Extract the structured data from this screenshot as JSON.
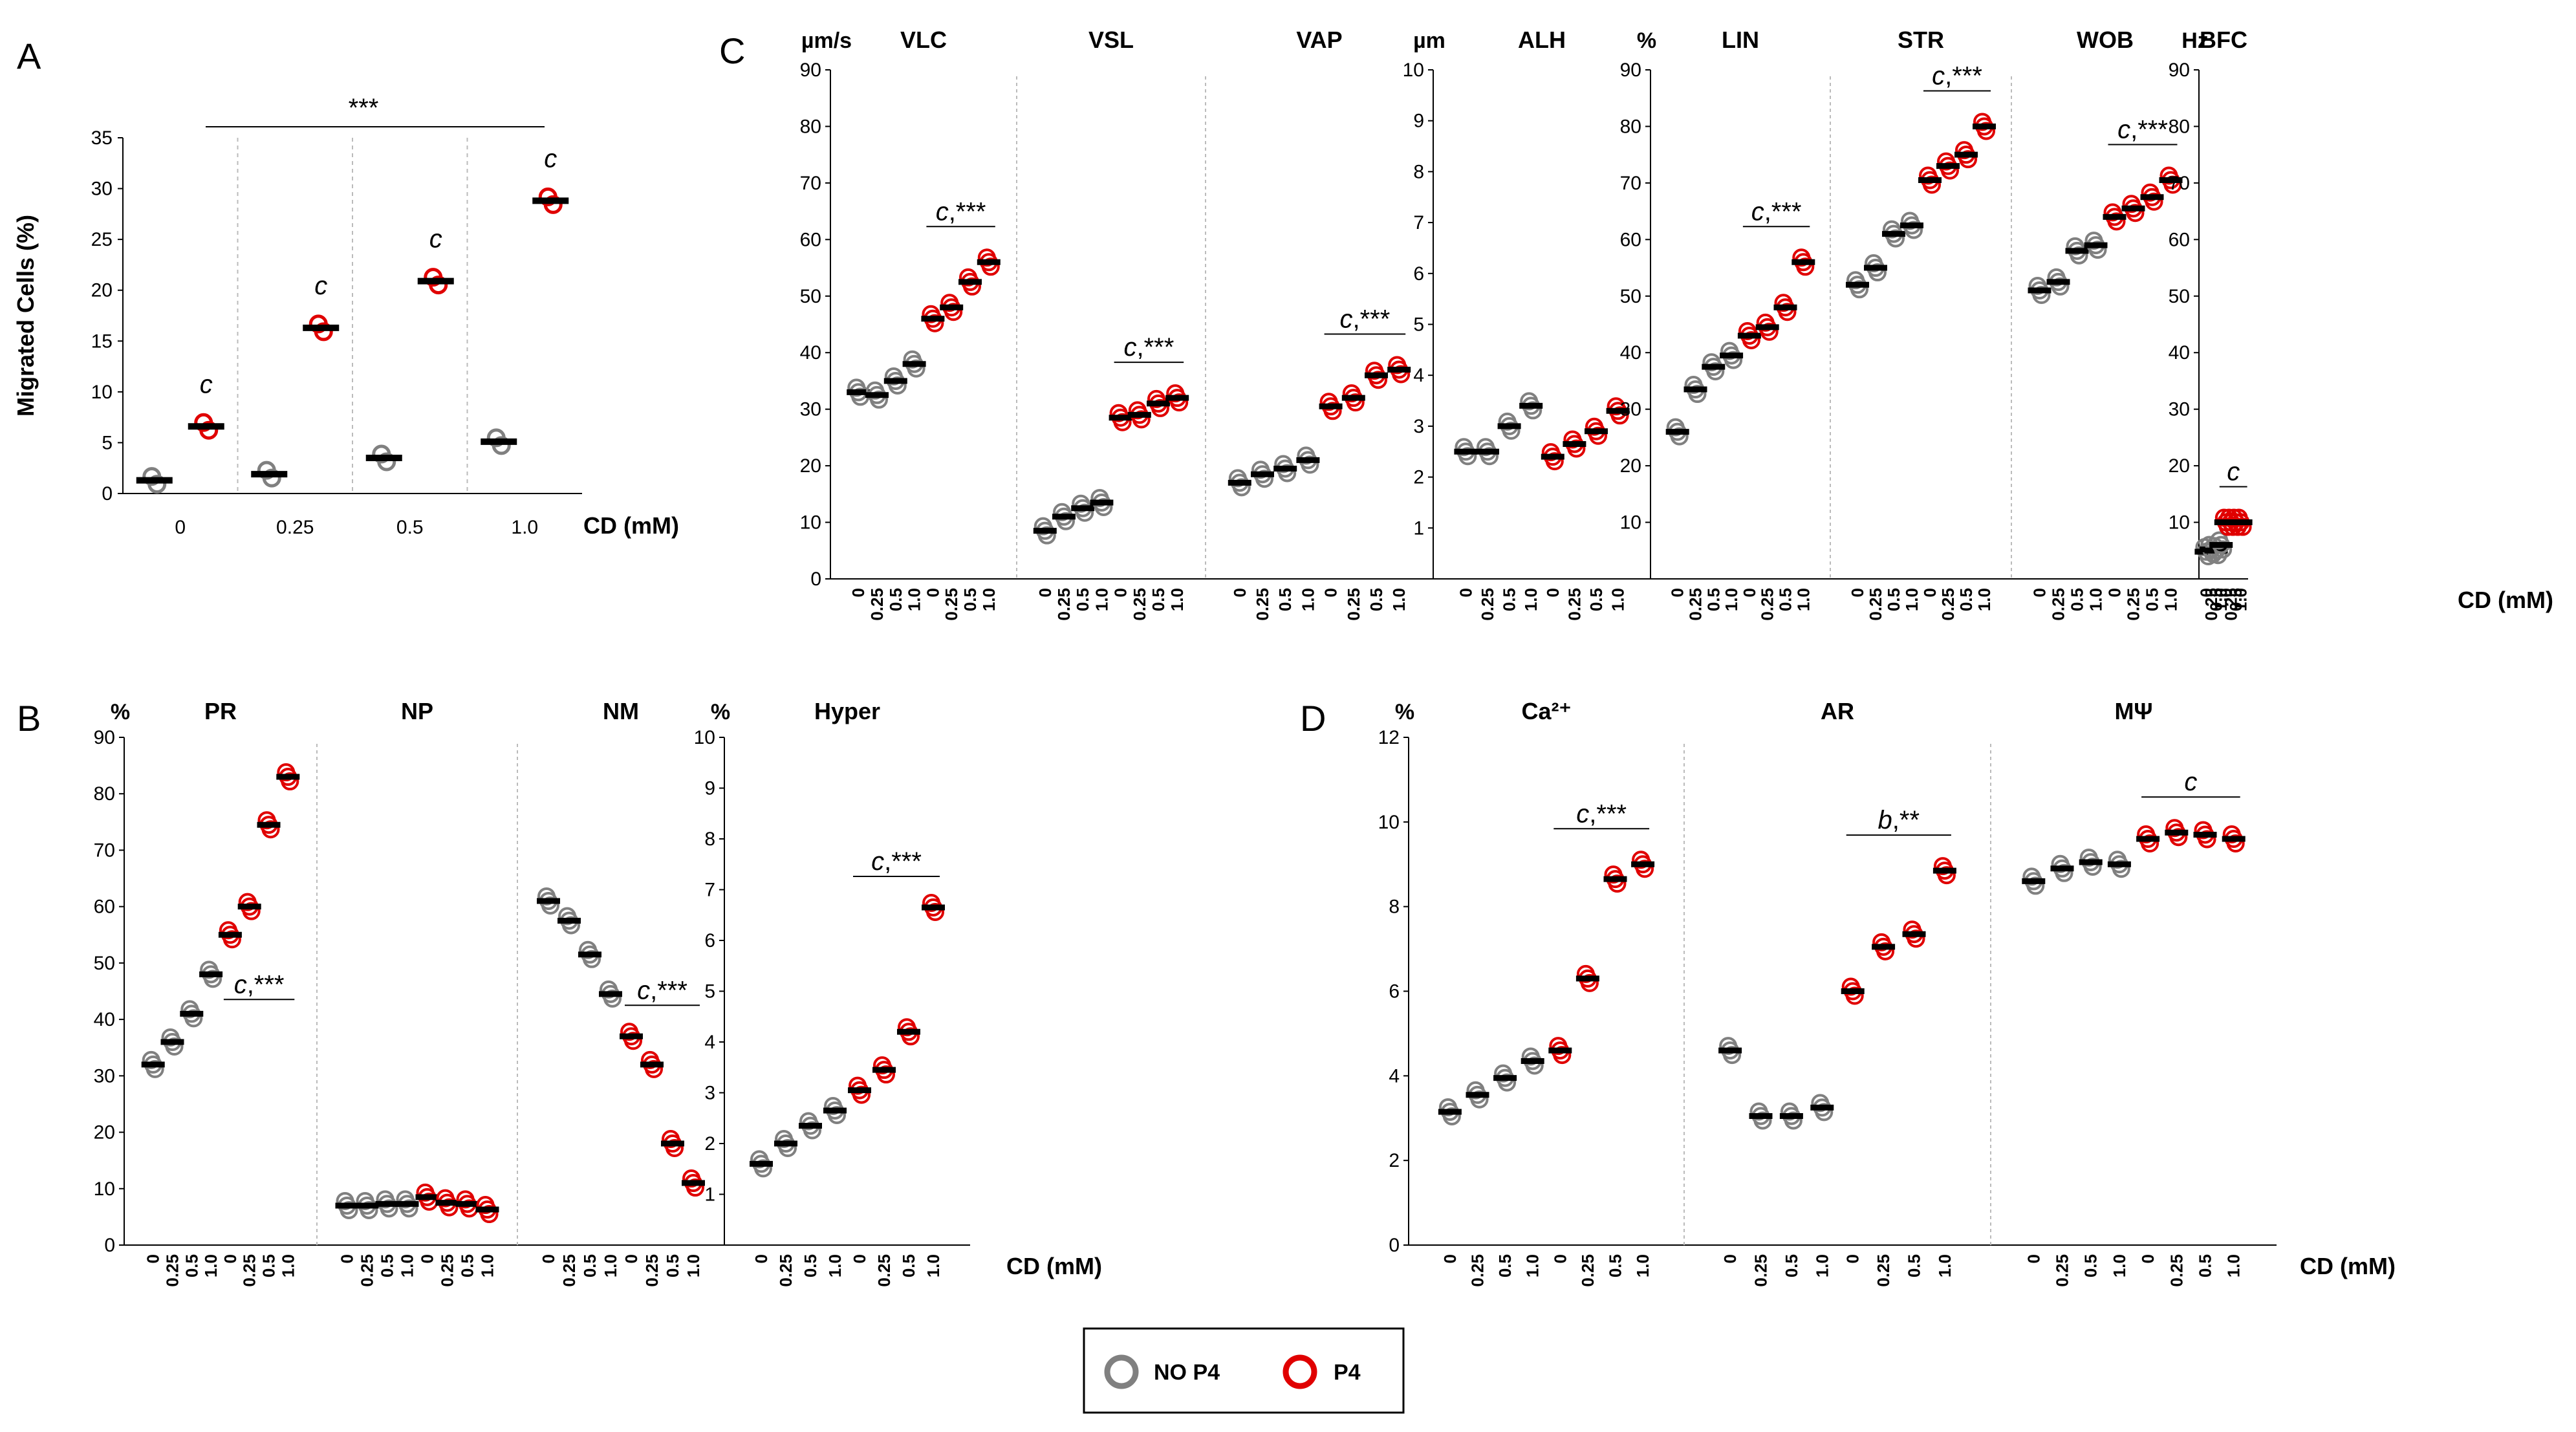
{
  "colors": {
    "no_p4": "#808080",
    "p4": "#e00000",
    "mean": "#000000",
    "divider": "#bbbbbb",
    "axis": "#000000"
  },
  "legend": {
    "no_p4": "NO P4",
    "p4": "P4"
  },
  "chart_data": [
    {
      "panel": "A",
      "type": "scatter",
      "ylabel": "Migrated Cells (%)",
      "ylim": [
        0,
        35
      ],
      "yticks": [
        0,
        5,
        10,
        15,
        20,
        25,
        30,
        35
      ],
      "xlabel": "CD (mM)",
      "categories": [
        "0",
        "0.25",
        "0.5",
        "1.0"
      ],
      "series": [
        {
          "name": "NO P4",
          "values": [
            1.3,
            1.9,
            3.5,
            5.1
          ]
        },
        {
          "name": "P4",
          "values": [
            6.6,
            16.3,
            20.9,
            28.8
          ]
        }
      ],
      "annotations": [
        "c",
        "c",
        "c",
        "c"
      ],
      "bracket": "***"
    },
    {
      "panel": "C",
      "type": "scatter",
      "xlabel": "CD (mM)",
      "doses": [
        "0",
        "0.25",
        "0.5",
        "1.0"
      ],
      "subplots": [
        {
          "title": "VLC",
          "unit": "µm/s",
          "ylim": [
            0,
            90
          ],
          "yticks": [
            0,
            10,
            20,
            30,
            40,
            50,
            60,
            70,
            80,
            90
          ],
          "no_p4": [
            33,
            32.5,
            35,
            38
          ],
          "p4": [
            46,
            48,
            52.5,
            56
          ],
          "sig": "c,***"
        },
        {
          "title": "VSL",
          "unit": "",
          "ylim": [
            0,
            90
          ],
          "yticks": [],
          "no_p4": [
            8.5,
            11,
            12.5,
            13.5
          ],
          "p4": [
            28.5,
            29,
            31,
            32
          ],
          "sig": "c,***"
        },
        {
          "title": "VAP",
          "unit": "",
          "ylim": [
            0,
            90
          ],
          "yticks": [],
          "no_p4": [
            17,
            18.5,
            19.5,
            21
          ],
          "p4": [
            30.5,
            32,
            36,
            37
          ],
          "sig": "c,***"
        },
        {
          "title": "ALH",
          "unit": "µm",
          "ylim": [
            0,
            10
          ],
          "yticks": [
            1,
            2,
            3,
            4,
            5,
            6,
            7,
            8,
            9,
            10
          ],
          "no_p4": [
            2.5,
            2.5,
            3,
            3.4
          ],
          "p4": [
            2.4,
            2.65,
            2.9,
            3.3
          ],
          "sig": ""
        },
        {
          "title": "LIN",
          "unit": "%",
          "ylim": [
            0,
            90
          ],
          "yticks": [
            10,
            20,
            30,
            40,
            50,
            60,
            70,
            80,
            90
          ],
          "no_p4": [
            26,
            33.5,
            37.5,
            39.5
          ],
          "p4": [
            43,
            44.5,
            48,
            56
          ],
          "sig": "c,***"
        },
        {
          "title": "STR",
          "unit": "",
          "ylim": [
            0,
            90
          ],
          "yticks": [],
          "no_p4": [
            52,
            55,
            61,
            62.5
          ],
          "p4": [
            70.5,
            73,
            75,
            80
          ],
          "sig": "c,***"
        },
        {
          "title": "WOB",
          "unit": "",
          "ylim": [
            0,
            90
          ],
          "yticks": [],
          "no_p4": [
            51,
            52.5,
            58,
            59
          ],
          "p4": [
            64,
            65.5,
            67.5,
            70.5
          ],
          "sig": "c,***"
        },
        {
          "title": "BFC",
          "unit": "Hz",
          "ylim": [
            0,
            90
          ],
          "yticks": [
            10,
            20,
            30,
            40,
            50,
            60,
            70,
            80,
            90
          ],
          "no_p4": [
            4.8,
            5.2,
            5,
            6
          ],
          "p4": [
            10,
            10,
            10,
            10
          ],
          "sig": "c"
        }
      ]
    },
    {
      "panel": "B",
      "type": "scatter",
      "xlabel": "CD (mM)",
      "doses": [
        "0",
        "0.25",
        "0.5",
        "1.0"
      ],
      "subplots": [
        {
          "title": "PR",
          "unit": "%",
          "ylim": [
            0,
            90
          ],
          "yticks": [
            0,
            10,
            20,
            30,
            40,
            50,
            60,
            70,
            80,
            90
          ],
          "no_p4": [
            32,
            36,
            41,
            48
          ],
          "p4": [
            55,
            60,
            74.5,
            83
          ],
          "sig": "c,***"
        },
        {
          "title": "NP",
          "unit": "",
          "ylim": [
            0,
            90
          ],
          "yticks": [],
          "no_p4": [
            7,
            7,
            7.3,
            7.3
          ],
          "p4": [
            8.5,
            7.5,
            7.3,
            6.3
          ],
          "sig": ""
        },
        {
          "title": "NM",
          "unit": "",
          "ylim": [
            0,
            90
          ],
          "yticks": [],
          "no_p4": [
            61,
            57.5,
            51.5,
            44.5
          ],
          "p4": [
            37,
            32,
            18,
            11
          ],
          "sig": "c,***"
        },
        {
          "title": "Hyper",
          "unit": "%",
          "ylim": [
            0,
            10
          ],
          "yticks": [
            1,
            2,
            3,
            4,
            5,
            6,
            7,
            8,
            9,
            10
          ],
          "no_p4": [
            1.6,
            2.0,
            2.35,
            2.65
          ],
          "p4": [
            3.05,
            3.45,
            4.2,
            6.65
          ],
          "sig": "c,***"
        }
      ]
    },
    {
      "panel": "D",
      "type": "scatter",
      "xlabel": "CD (mM)",
      "doses": [
        "0",
        "0.25",
        "0.5",
        "1.0"
      ],
      "subplots": [
        {
          "title": "Ca²⁺",
          "unit": "%",
          "ylim": [
            0,
            12
          ],
          "yticks": [
            0,
            2,
            4,
            6,
            8,
            10,
            12
          ],
          "no_p4": [
            3.15,
            3.55,
            3.95,
            4.35
          ],
          "p4": [
            4.6,
            6.3,
            8.65,
            9.0
          ],
          "sig": "c,***"
        },
        {
          "title": "AR",
          "unit": "",
          "ylim": [
            0,
            12
          ],
          "yticks": [],
          "no_p4": [
            4.6,
            3.05,
            3.05,
            3.25
          ],
          "p4": [
            6.0,
            7.05,
            7.35,
            8.85
          ],
          "sig": "b,**"
        },
        {
          "title": "MΨ",
          "unit": "",
          "ylim": [
            0,
            12
          ],
          "yticks": [],
          "no_p4": [
            8.6,
            8.9,
            9.05,
            9.0
          ],
          "p4": [
            9.6,
            9.75,
            9.7,
            9.6
          ],
          "sig": "c"
        }
      ]
    }
  ]
}
